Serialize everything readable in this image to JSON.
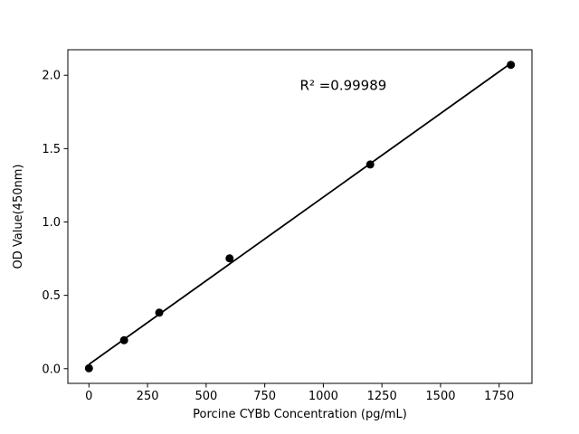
{
  "chart_data": {
    "type": "scatter",
    "title": "",
    "xlabel": "Porcine CYBb Concentration (pg/mL)",
    "ylabel": "OD Value(450nm)",
    "x": [
      0,
      150,
      300,
      600,
      1200,
      1800
    ],
    "y": [
      0.003,
      0.194,
      0.382,
      0.752,
      1.392,
      2.071
    ],
    "xlim": [
      -90,
      1890
    ],
    "ylim": [
      -0.1,
      2.174
    ],
    "x_tick_values": [
      0,
      250,
      500,
      750,
      1000,
      1250,
      1500,
      1750
    ],
    "x_tick_labels": [
      "0",
      "250",
      "500",
      "750",
      "1000",
      "1250",
      "1500",
      "1750"
    ],
    "y_tick_values": [
      0.0,
      0.5,
      1.0,
      1.5,
      2.0
    ],
    "y_tick_labels": [
      "0.0",
      "0.5",
      "1.0",
      "1.5",
      "2.0"
    ],
    "grid": false,
    "legend_position": "none",
    "marker_color": "#000000",
    "line_color": "#000000",
    "background_color": "#ffffff",
    "annotation": {
      "text": "R² =0.99989",
      "x": 1085,
      "y": 1.9
    }
  }
}
